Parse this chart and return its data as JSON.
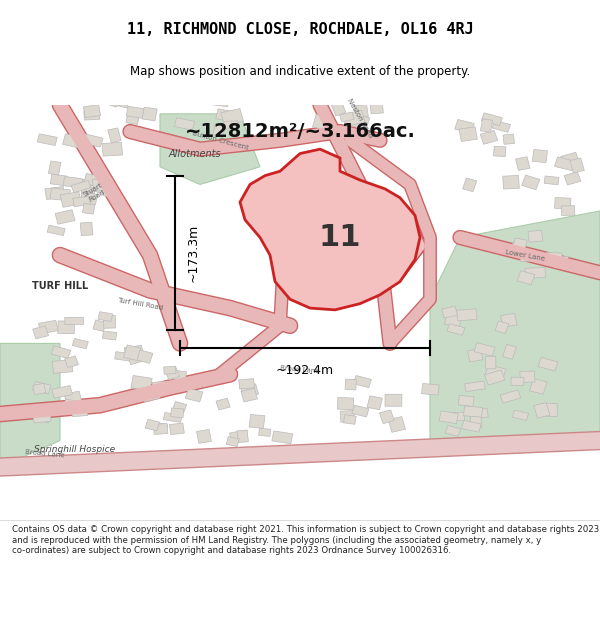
{
  "title_line1": "11, RICHMOND CLOSE, ROCHDALE, OL16 4RJ",
  "title_line2": "Map shows position and indicative extent of the property.",
  "area_text": "~12812m²/~3.166ac.",
  "dimension_h": "~173.3m",
  "dimension_w": "~192.4m",
  "label_11": "11",
  "label_allotments": "Allotments",
  "label_turf_hill": "TURF HILL",
  "label_springhill": "Springhill Hospice",
  "footer_text": "Contains OS data © Crown copyright and database right 2021. This information is subject to Crown copyright and database rights 2023 and is reproduced with the permission of HM Land Registry. The polygons (including the associated geometry, namely x, y co-ordinates) are subject to Crown copyright and database rights 2023 Ordnance Survey 100026316.",
  "bg_color": "#f0ede8",
  "map_bg": "#f5f2ee",
  "road_color": "#e8b8b8",
  "road_stroke": "#cc6666",
  "plot_fill": "#f5c0c0",
  "plot_stroke": "#cc2222",
  "green_fill": "#c8dcc8",
  "footer_bg": "#ffffff",
  "title_bg": "#ffffff"
}
